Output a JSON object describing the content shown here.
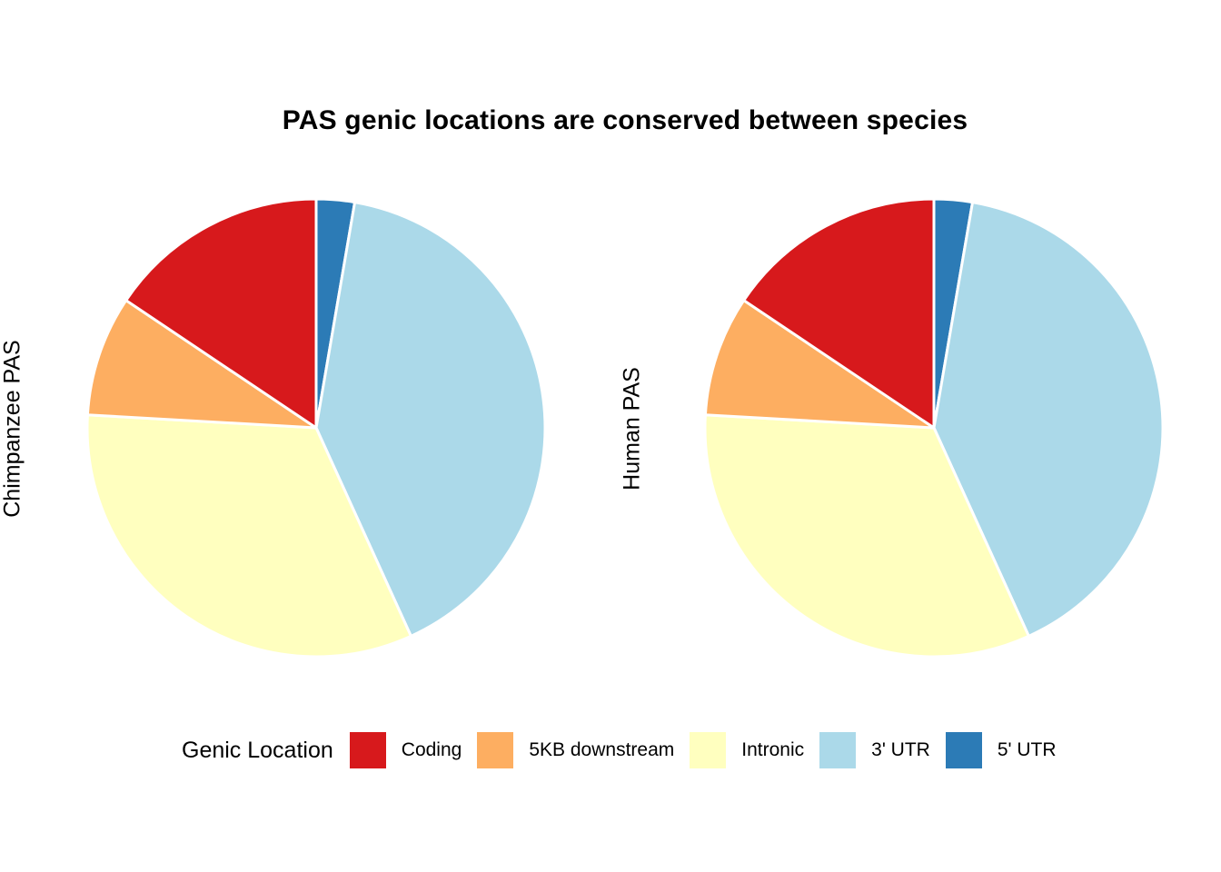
{
  "chart_data": {
    "type": "pie",
    "title": "PAS genic locations are conserved between species",
    "legend": {
      "title": "Genic Location",
      "position": "bottom",
      "entries": [
        {
          "label": "Coding",
          "color": "#d7191c"
        },
        {
          "label": "5KB downstream",
          "color": "#fdae61"
        },
        {
          "label": "Intronic",
          "color": "#ffffbf"
        },
        {
          "label": "3' UTR",
          "color": "#abd9e9"
        },
        {
          "label": "5' UTR",
          "color": "#2c7bb6"
        }
      ]
    },
    "draw_order": [
      "5' UTR",
      "3' UTR",
      "Intronic",
      "5KB downstream",
      "Coding"
    ],
    "pies": [
      {
        "ylabel": "Chimpanzee PAS",
        "values": {
          "5' UTR": 2.7,
          "3' UTR": 40.5,
          "Intronic": 32.7,
          "5KB downstream": 8.5,
          "Coding": 15.6
        }
      },
      {
        "ylabel": "Human PAS",
        "values": {
          "5' UTR": 2.7,
          "3' UTR": 40.5,
          "Intronic": 32.7,
          "5KB downstream": 8.5,
          "Coding": 15.6
        }
      }
    ]
  }
}
